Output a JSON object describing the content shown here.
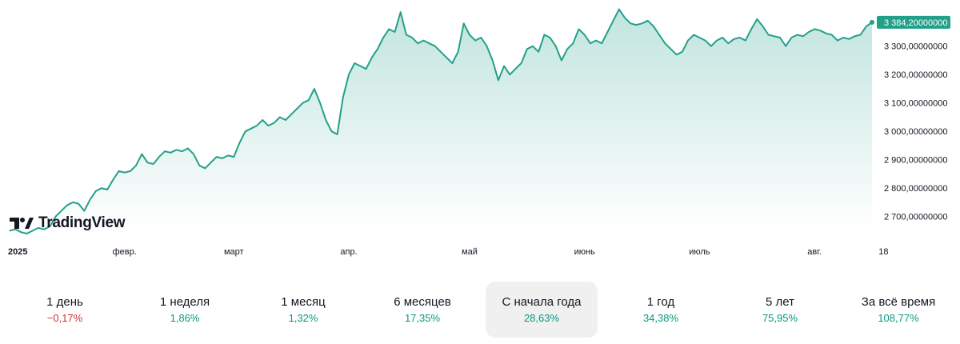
{
  "logo": {
    "text": "TradingView"
  },
  "chart_data": {
    "type": "area",
    "last_value_label": "3 384,20000000",
    "ylim": [
      2640,
      3440
    ],
    "y_ticks": [
      {
        "value": 3300,
        "label": "3 300,00000000"
      },
      {
        "value": 3200,
        "label": "3 200,00000000"
      },
      {
        "value": 3100,
        "label": "3 100,00000000"
      },
      {
        "value": 3000,
        "label": "3 000,00000000"
      },
      {
        "value": 2900,
        "label": "2 900,00000000"
      },
      {
        "value": 2800,
        "label": "2 800,00000000"
      },
      {
        "value": 2700,
        "label": "2 700,00000000"
      }
    ],
    "x_ticks": [
      {
        "index": 0,
        "label": "2025",
        "bold": true
      },
      {
        "index": 20,
        "label": "февр.",
        "bold": false
      },
      {
        "index": 39,
        "label": "март",
        "bold": false
      },
      {
        "index": 59,
        "label": "апр.",
        "bold": false
      },
      {
        "index": 80,
        "label": "май",
        "bold": false
      },
      {
        "index": 100,
        "label": "июнь",
        "bold": false
      },
      {
        "index": 120,
        "label": "июль",
        "bold": false
      },
      {
        "index": 140,
        "label": "авг.",
        "bold": false
      },
      {
        "index": 152,
        "label": "18",
        "bold": false
      }
    ],
    "colors": {
      "line": "#22a08a",
      "fill_top": "#22a08a",
      "label_bg": "#22a08a"
    },
    "values": [
      2650,
      2655,
      2645,
      2640,
      2650,
      2660,
      2655,
      2665,
      2700,
      2720,
      2740,
      2750,
      2745,
      2720,
      2760,
      2790,
      2800,
      2795,
      2830,
      2860,
      2855,
      2860,
      2880,
      2920,
      2890,
      2885,
      2910,
      2930,
      2925,
      2935,
      2930,
      2940,
      2920,
      2880,
      2870,
      2890,
      2910,
      2905,
      2915,
      2910,
      2960,
      3000,
      3010,
      3020,
      3040,
      3020,
      3030,
      3050,
      3040,
      3060,
      3080,
      3100,
      3110,
      3150,
      3100,
      3040,
      3000,
      2990,
      3120,
      3200,
      3240,
      3230,
      3220,
      3260,
      3290,
      3330,
      3360,
      3350,
      3420,
      3340,
      3330,
      3310,
      3320,
      3310,
      3300,
      3280,
      3260,
      3240,
      3280,
      3380,
      3340,
      3320,
      3330,
      3300,
      3250,
      3180,
      3230,
      3200,
      3220,
      3240,
      3290,
      3300,
      3280,
      3340,
      3330,
      3300,
      3250,
      3290,
      3310,
      3360,
      3340,
      3310,
      3320,
      3310,
      3350,
      3390,
      3430,
      3400,
      3380,
      3375,
      3380,
      3390,
      3370,
      3340,
      3310,
      3290,
      3270,
      3280,
      3320,
      3340,
      3330,
      3320,
      3300,
      3320,
      3330,
      3310,
      3325,
      3330,
      3320,
      3360,
      3395,
      3370,
      3340,
      3335,
      3330,
      3300,
      3330,
      3340,
      3335,
      3350,
      3360,
      3355,
      3345,
      3340,
      3320,
      3330,
      3325,
      3335,
      3340,
      3370,
      3384
    ]
  },
  "periods": [
    {
      "label": "1 день",
      "value": "−0,17%",
      "sign": "neg",
      "active": false
    },
    {
      "label": "1 неделя",
      "value": "1,86%",
      "sign": "pos",
      "active": false
    },
    {
      "label": "1 месяц",
      "value": "1,32%",
      "sign": "pos",
      "active": false
    },
    {
      "label": "6 месяцев",
      "value": "17,35%",
      "sign": "pos",
      "active": false
    },
    {
      "label": "С начала года",
      "value": "28,63%",
      "sign": "pos",
      "active": true
    },
    {
      "label": "1 год",
      "value": "34,38%",
      "sign": "pos",
      "active": false
    },
    {
      "label": "5 лет",
      "value": "75,95%",
      "sign": "pos",
      "active": false
    },
    {
      "label": "За всё время",
      "value": "108,77%",
      "sign": "pos",
      "active": false
    }
  ]
}
